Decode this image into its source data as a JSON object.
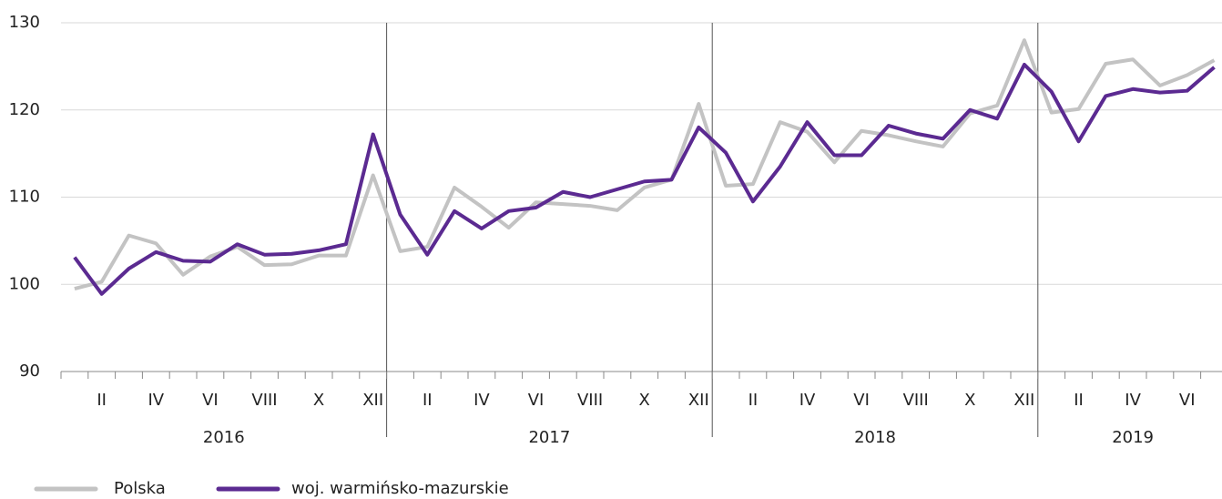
{
  "chart_data": {
    "type": "line",
    "categories": [
      null,
      "II",
      null,
      "IV",
      null,
      "VI",
      null,
      "VIII",
      null,
      "X",
      null,
      "XII",
      null,
      "II",
      null,
      "IV",
      null,
      "VI",
      null,
      "VIII",
      null,
      "X",
      null,
      "XII",
      null,
      "II",
      null,
      "IV",
      null,
      "VI",
      null,
      "VIII",
      null,
      "X",
      null,
      "XII",
      null,
      "II",
      null,
      "IV",
      null,
      "VI",
      null
    ],
    "years": [
      "2016",
      "2017",
      "2018",
      "2019"
    ],
    "series": [
      {
        "name": "Polska",
        "color": "#c3c3c3",
        "values": [
          99.5,
          100.3,
          105.6,
          104.7,
          101.1,
          103.2,
          104.3,
          102.2,
          102.3,
          103.3,
          103.3,
          112.5,
          103.8,
          104.3,
          111.1,
          108.9,
          106.5,
          109.4,
          109.2,
          109.0,
          108.5,
          111.1,
          112.0,
          120.7,
          111.3,
          111.5,
          118.6,
          117.5,
          114.0,
          117.6,
          117.1,
          116.4,
          115.8,
          119.6,
          120.5,
          128.0,
          119.7,
          120.1,
          125.3,
          125.8,
          122.8,
          124.0,
          125.7
        ]
      },
      {
        "name": "woj. warmińsko-mazurskie",
        "color": "#5b2a91",
        "values": [
          103.1,
          98.9,
          101.8,
          103.7,
          102.7,
          102.6,
          104.6,
          103.4,
          103.5,
          103.9,
          104.6,
          117.2,
          108.0,
          103.4,
          108.4,
          106.4,
          108.4,
          108.8,
          110.6,
          110.0,
          110.9,
          111.8,
          112.0,
          118.0,
          115.1,
          109.5,
          113.5,
          118.6,
          114.8,
          114.8,
          118.2,
          117.3,
          116.7,
          120.0,
          119.0,
          125.2,
          122.1,
          116.4,
          121.6,
          122.4,
          122.0,
          122.2,
          124.9
        ]
      }
    ],
    "ylim": [
      90,
      130
    ],
    "yticks": [
      90,
      100,
      110,
      120,
      130
    ],
    "grid": true
  }
}
